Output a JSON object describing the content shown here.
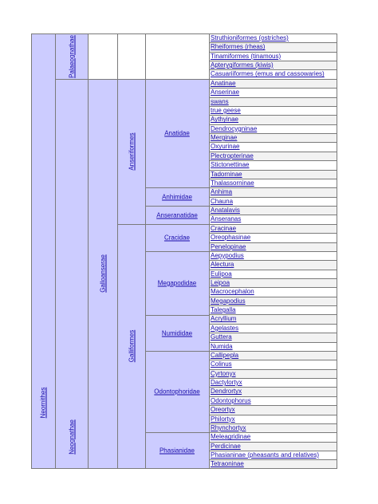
{
  "document": {
    "root": "Neornithes",
    "level2": [
      {
        "name": "Palaeognathae"
      },
      {
        "name": "Neognathae"
      }
    ],
    "level3": [
      {
        "name": "Galloanserae"
      }
    ],
    "orders": [
      {
        "name": "Anseriformes"
      },
      {
        "name": "Galliformes"
      }
    ],
    "families": [
      {
        "name": "Anatidae"
      },
      {
        "name": "Anhimidae"
      },
      {
        "name": "Anseranatidae"
      },
      {
        "name": "Cracidae"
      },
      {
        "name": "Megapodidae"
      },
      {
        "name": "Numididae"
      },
      {
        "name": "Odontophoridae"
      },
      {
        "name": "Phasianidae"
      }
    ],
    "leaves": [
      "Struthioniformes (ostriches)",
      "Rheiformes (rheas)",
      "Tinamiformes (tinamous)",
      "Apterygiformes (kiwis)",
      "Casuariiformes (emus and cassowaries)",
      "Anatinae",
      "Anserinae",
      "swans",
      "true geese",
      "Aythyinae",
      "Dendrocygninae",
      "Merginae",
      "Oxyurinae",
      "Plectropterinae",
      "Stictonettinae",
      "Tadorninae",
      "Thalassorninae",
      "Anhima",
      "Chauna",
      "Anatalavis",
      "Anseranas",
      "Cracinae",
      "Oreophasinae",
      "Penelopinae",
      "Aepypodius",
      "Alectura",
      "Eulipoa",
      "Leipoa",
      "Macrocephalon",
      "Megapodius",
      "Talegalla",
      "Acryllium",
      "Agelastes",
      "Guttera",
      "Numida",
      "Callipepla",
      "Colinus",
      "Cyrtonyx",
      "Dactylortyx",
      "Dendrortyx",
      "Odontophorus",
      "Oreortyx",
      "Philortyx",
      "Rhynchortyx",
      "Meleagridinae",
      "Perdicinae",
      "Phasianinae (pheasants and relatives)",
      "Tetraoninae"
    ]
  }
}
